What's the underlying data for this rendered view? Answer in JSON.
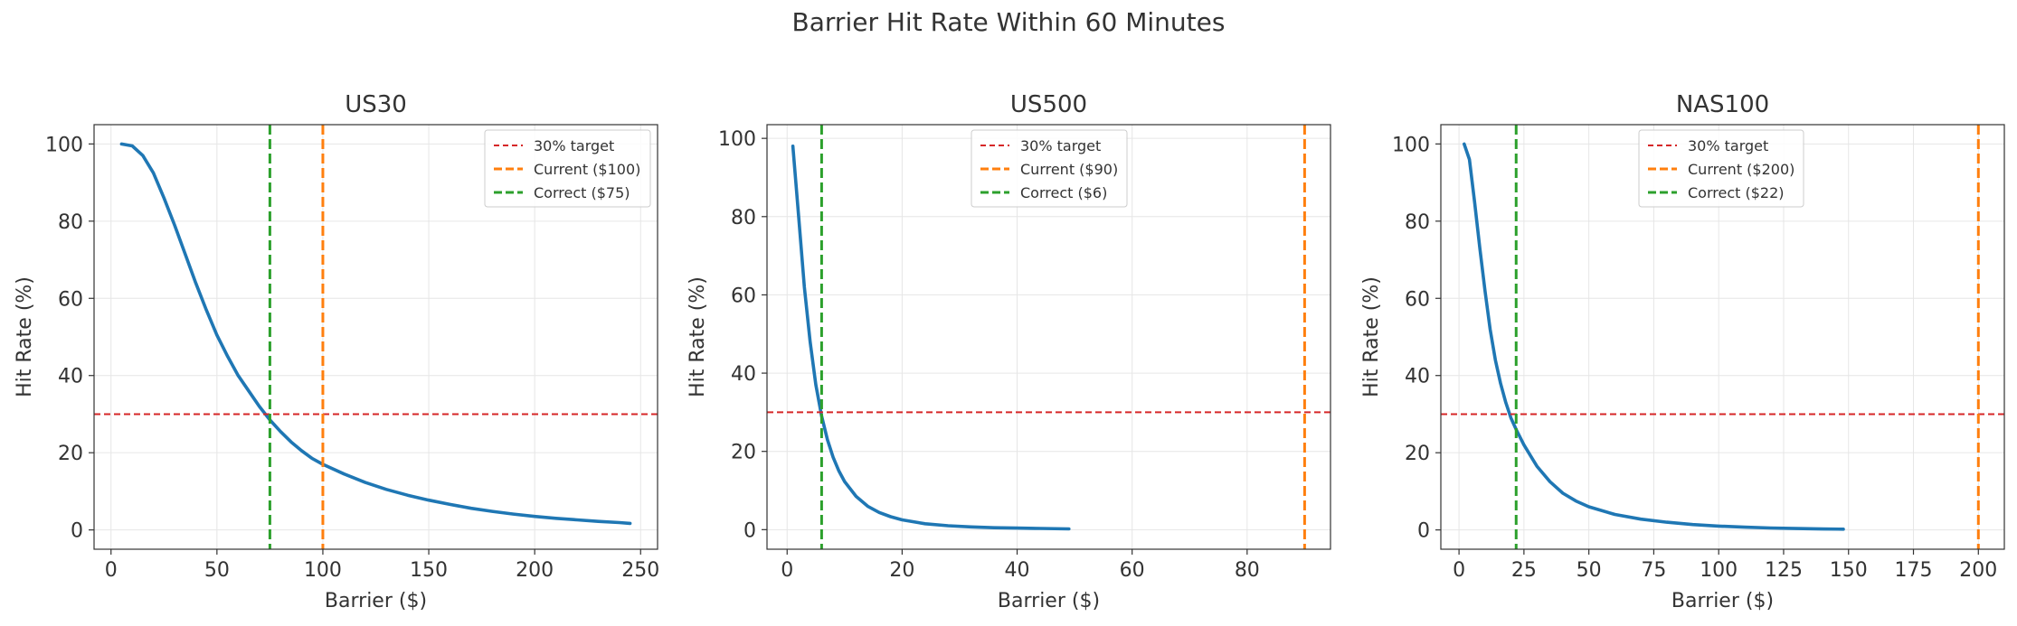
{
  "suptitle": "Barrier Hit Rate Within 60 Minutes",
  "colors": {
    "curve": "#1f77b4",
    "target": "#d62728",
    "current": "#ff7f0e",
    "correct": "#2ca02c",
    "grid": "#e6e6e6"
  },
  "chart_data": [
    {
      "type": "line",
      "title": "US30",
      "xlabel": "Barrier ($)",
      "ylabel": "Hit Rate (%)",
      "xlim": [
        -8,
        258
      ],
      "ylim": [
        -5,
        105
      ],
      "xticks": [
        0,
        50,
        100,
        150,
        200,
        250
      ],
      "yticks": [
        0,
        20,
        40,
        60,
        80,
        100
      ],
      "grid": true,
      "legend_position": "top-right",
      "series": [
        {
          "x": [
            5,
            10,
            15,
            20,
            25,
            30,
            35,
            40,
            45,
            50,
            55,
            60,
            65,
            70,
            75,
            80,
            85,
            90,
            95,
            100,
            110,
            120,
            130,
            140,
            150,
            160,
            170,
            180,
            190,
            200,
            210,
            220,
            230,
            240,
            245
          ],
          "y": [
            100,
            99.5,
            97,
            92.5,
            86,
            79,
            71.5,
            64,
            57,
            50.5,
            45,
            40,
            36,
            32,
            28.5,
            25.5,
            22.8,
            20.5,
            18.5,
            17,
            14.5,
            12.3,
            10.5,
            9,
            7.7,
            6.6,
            5.6,
            4.8,
            4.1,
            3.5,
            3,
            2.6,
            2.2,
            1.9,
            1.7
          ]
        }
      ],
      "reference_lines": [
        {
          "orientation": "horizontal",
          "value": 30,
          "label": "30% target",
          "color_key": "target"
        },
        {
          "orientation": "vertical",
          "value": 100,
          "label": "Current ($100)",
          "color_key": "current"
        },
        {
          "orientation": "vertical",
          "value": 75,
          "label": "Correct ($75)",
          "color_key": "correct"
        }
      ]
    },
    {
      "type": "line",
      "title": "US500",
      "xlabel": "Barrier ($)",
      "ylabel": "Hit Rate (%)",
      "xlim": [
        -3.5,
        94.5
      ],
      "ylim": [
        -5,
        103.5
      ],
      "xticks": [
        0,
        20,
        40,
        60,
        80
      ],
      "yticks": [
        0,
        20,
        40,
        60,
        80,
        100
      ],
      "grid": true,
      "legend_position": "top-center",
      "series": [
        {
          "x": [
            1,
            2,
            3,
            4,
            5,
            6,
            7,
            8,
            9,
            10,
            12,
            14,
            16,
            18,
            20,
            24,
            28,
            32,
            36,
            40,
            44,
            49
          ],
          "y": [
            98,
            80,
            62,
            48,
            37,
            29,
            23,
            18.5,
            15,
            12.3,
            8.5,
            6,
            4.4,
            3.3,
            2.5,
            1.5,
            1,
            0.7,
            0.5,
            0.4,
            0.3,
            0.2
          ]
        }
      ],
      "reference_lines": [
        {
          "orientation": "horizontal",
          "value": 30,
          "label": "30% target",
          "color_key": "target"
        },
        {
          "orientation": "vertical",
          "value": 90,
          "label": "Current ($90)",
          "color_key": "current"
        },
        {
          "orientation": "vertical",
          "value": 6,
          "label": "Correct ($6)",
          "color_key": "correct"
        }
      ]
    },
    {
      "type": "line",
      "title": "NAS100",
      "xlabel": "Barrier ($)",
      "ylabel": "Hit Rate (%)",
      "xlim": [
        -7,
        210
      ],
      "ylim": [
        -5,
        105
      ],
      "xticks": [
        0,
        25,
        50,
        75,
        100,
        125,
        150,
        175,
        200
      ],
      "yticks": [
        0,
        20,
        40,
        60,
        80,
        100
      ],
      "grid": true,
      "legend_position": "top-center",
      "series": [
        {
          "x": [
            2,
            4,
            6,
            8,
            10,
            12,
            14,
            16,
            18,
            20,
            22,
            25,
            30,
            35,
            40,
            45,
            50,
            60,
            70,
            80,
            90,
            100,
            110,
            120,
            130,
            140,
            148
          ],
          "y": [
            100,
            96,
            85,
            73,
            62,
            52,
            44,
            38,
            33,
            29,
            26,
            22,
            16.5,
            12.5,
            9.5,
            7.5,
            6,
            4,
            2.8,
            2,
            1.4,
            1,
            0.7,
            0.5,
            0.35,
            0.25,
            0.2
          ]
        }
      ],
      "reference_lines": [
        {
          "orientation": "horizontal",
          "value": 30,
          "label": "30% target",
          "color_key": "target"
        },
        {
          "orientation": "vertical",
          "value": 200,
          "label": "Current ($200)",
          "color_key": "current"
        },
        {
          "orientation": "vertical",
          "value": 22,
          "label": "Correct ($22)",
          "color_key": "correct"
        }
      ]
    }
  ]
}
